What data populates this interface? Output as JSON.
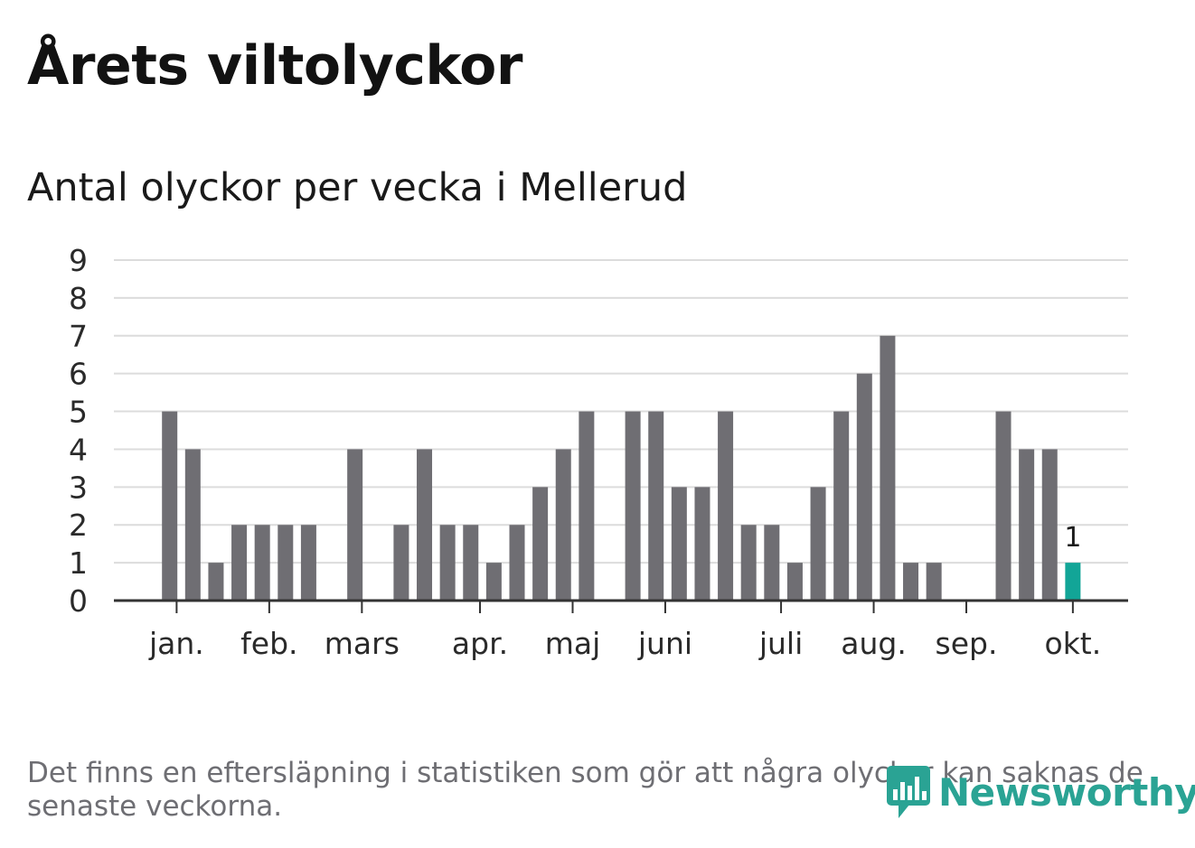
{
  "title": "Årets viltolyckor",
  "chart_data": {
    "type": "bar",
    "title": "Antal olyckor per vecka i Mellerud",
    "xlabel": "",
    "ylabel": "",
    "ylim": [
      0,
      9
    ],
    "yticks": [
      0,
      1,
      2,
      3,
      4,
      5,
      6,
      7,
      8,
      9
    ],
    "grid": true,
    "weeks": [
      1,
      2,
      3,
      4,
      5,
      6,
      7,
      8,
      9,
      10,
      11,
      12,
      13,
      14,
      15,
      16,
      17,
      18,
      19,
      20,
      21,
      22,
      23,
      24,
      25,
      26,
      27,
      28,
      29,
      30,
      31,
      32,
      33,
      34,
      35,
      36,
      37,
      38,
      39,
      40
    ],
    "values": [
      5,
      4,
      1,
      2,
      2,
      2,
      2,
      0,
      4,
      0,
      2,
      4,
      2,
      2,
      1,
      2,
      3,
      4,
      5,
      0,
      5,
      5,
      3,
      3,
      5,
      2,
      2,
      1,
      3,
      5,
      6,
      7,
      1,
      1,
      0,
      0,
      5,
      4,
      4,
      1
    ],
    "month_labels": [
      {
        "label": "jan.",
        "week": 1.3
      },
      {
        "label": "feb.",
        "week": 5.3
      },
      {
        "label": "mars",
        "week": 9.3
      },
      {
        "label": "apr.",
        "week": 14.4
      },
      {
        "label": "maj",
        "week": 18.4
      },
      {
        "label": "juni",
        "week": 22.4
      },
      {
        "label": "juli",
        "week": 27.4
      },
      {
        "label": "aug.",
        "week": 31.4
      },
      {
        "label": "sep.",
        "week": 35.4
      },
      {
        "label": "okt.",
        "week": 40
      }
    ],
    "highlight_week": 40,
    "highlight_label": "1",
    "colors": {
      "bar": "#6f6e73",
      "highlight": "#12a597",
      "grid": "#dcdcdc",
      "axis": "#333333"
    }
  },
  "note": "Det finns en eftersläpning i statistiken som gör att några olyckor kan saknas de senaste veckorna.",
  "logo": {
    "text": "Newsworthy",
    "color": "#2aa394",
    "icon": "newsworthy-chat-icon"
  }
}
